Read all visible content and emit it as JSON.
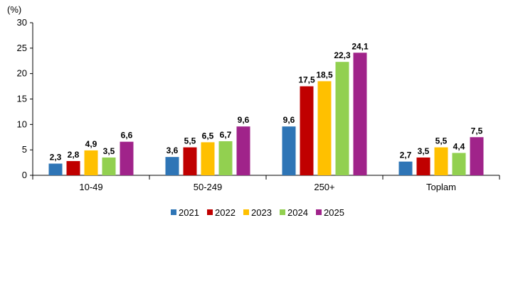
{
  "chart_data": {
    "type": "bar",
    "unit_label": "(%)",
    "categories": [
      "10-49",
      "50-249",
      "250+",
      "Toplam"
    ],
    "series": [
      {
        "name": "2021",
        "color": "#2e75b6",
        "values": [
          2.3,
          3.6,
          9.6,
          2.7
        ],
        "labels": [
          "2,3",
          "3,6",
          "9,6",
          "2,7"
        ]
      },
      {
        "name": "2022",
        "color": "#c00000",
        "values": [
          2.8,
          5.5,
          17.5,
          3.5
        ],
        "labels": [
          "2,8",
          "5,5",
          "17,5",
          "3,5"
        ]
      },
      {
        "name": "2023",
        "color": "#ffc000",
        "values": [
          4.9,
          6.5,
          18.5,
          5.5
        ],
        "labels": [
          "4,9",
          "6,5",
          "18,5",
          "5,5"
        ]
      },
      {
        "name": "2024",
        "color": "#92d050",
        "values": [
          3.5,
          6.7,
          22.3,
          4.4
        ],
        "labels": [
          "3,5",
          "6,7",
          "22,3",
          "4,4"
        ]
      },
      {
        "name": "2025",
        "color": "#a0238a",
        "values": [
          6.6,
          9.6,
          24.1,
          7.5
        ],
        "labels": [
          "6,6",
          "9,6",
          "24,1",
          "7,5"
        ]
      }
    ],
    "ylim": [
      0,
      30
    ],
    "yticks": [
      0,
      5,
      10,
      15,
      20,
      25,
      30
    ],
    "grid": false,
    "legend_position": "bottom"
  }
}
